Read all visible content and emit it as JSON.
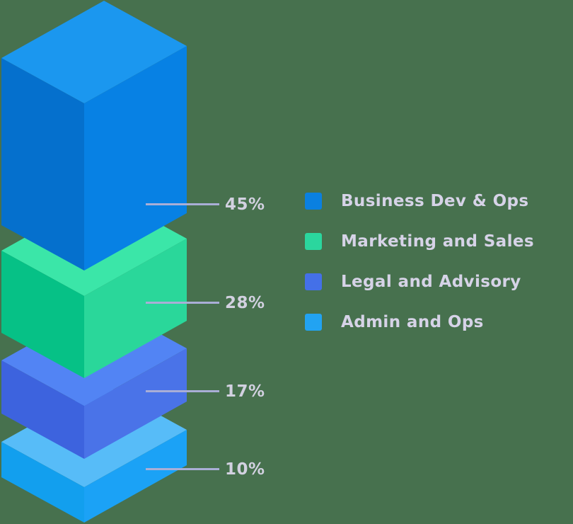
{
  "background": "#47714E",
  "chart_data": {
    "type": "isometric-stacked-bar",
    "title": "",
    "legend_position": "right",
    "label_color": "#D2D1E0",
    "legend_text_color": "#D6D3E7",
    "leader_line_color": "#A9AED6",
    "segments": [
      {
        "label": "Business Dev & Ops",
        "value": 45,
        "pct_label": "45%",
        "face_top": "#1B97EF",
        "face_left": "#0570CD",
        "face_right": "#0781E4",
        "swatch": "#0A80E0"
      },
      {
        "label": "Marketing and Sales",
        "value": 28,
        "pct_label": "28%",
        "face_top": "#3BE6A8",
        "face_left": "#06C186",
        "face_right": "#2AD79A",
        "swatch": "#2BD69E"
      },
      {
        "label": "Legal and Advisory",
        "value": 17,
        "pct_label": "17%",
        "face_top": "#5284F4",
        "face_left": "#3D63DE",
        "face_right": "#4A73E8",
        "swatch": "#4470E8"
      },
      {
        "label": "Admin and Ops",
        "value": 10,
        "pct_label": "10%",
        "face_top": "#57BCF8",
        "face_left": "#129FEE",
        "face_right": "#1BA2F6",
        "swatch": "#22A3F2"
      }
    ]
  }
}
